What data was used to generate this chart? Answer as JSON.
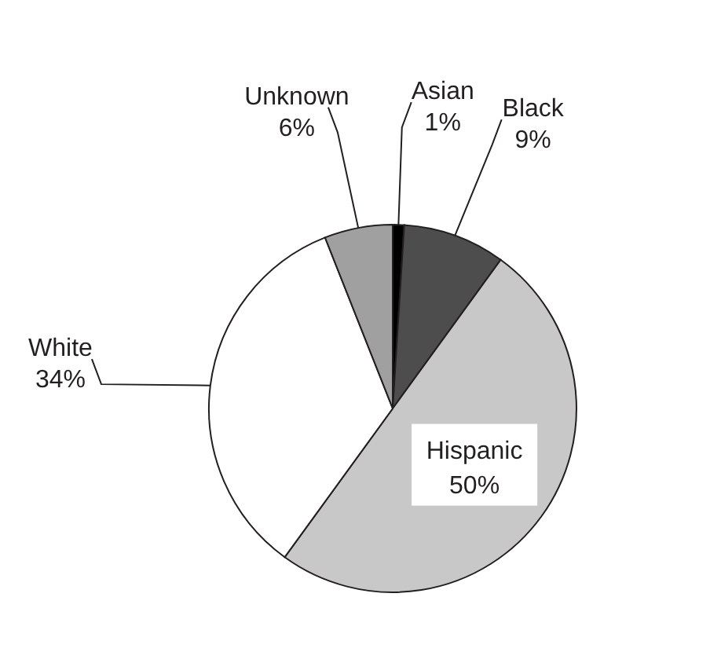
{
  "chart_data": {
    "type": "pie",
    "categories": [
      "Asian",
      "Black",
      "Hispanic",
      "White",
      "Unknown"
    ],
    "values": [
      1,
      9,
      50,
      34,
      6
    ],
    "value_labels": [
      "1%",
      "9%",
      "50%",
      "34%",
      "6%"
    ],
    "colors": [
      "#000000",
      "#4d4d4d",
      "#c8c8c8",
      "#ffffff",
      "#a0a0a0"
    ],
    "legend": false
  }
}
